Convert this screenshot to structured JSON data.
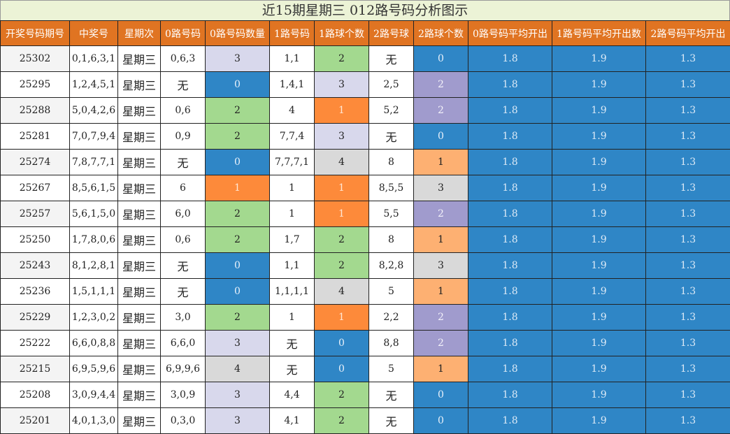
{
  "title": "近15期星期三 012路号码分析图示",
  "columns": [
    "开奖号码期号",
    "中奖号",
    "星期次",
    "0路号码",
    "0路号码数量",
    "1路号码",
    "1路球个数",
    "2路号球",
    "2路球个数",
    "0路号码平均开出",
    "1路号码平均开出数",
    "2路号码平均开出"
  ],
  "colors": {
    "header": "#e07422",
    "title_bg": "#ecf3d6",
    "blue": "#2f86c6",
    "green": "#a3d98f",
    "lavender": "#d8d8ec",
    "orange": "#fd8a3a",
    "peach": "#fdb072",
    "purple": "#a09bcd",
    "gray": "#d9d9d9"
  },
  "chart_data": {
    "type": "table",
    "title": "近15期星期三 012路号码分析图示",
    "rows": [
      {
        "period": "25302",
        "numbers": "0,1,6,3,1",
        "weekday": "星期三",
        "r0": "0,6,3",
        "r0_count": "3",
        "r1": "1,1",
        "r1_count": "2",
        "r2": "无",
        "r2_count": "0",
        "avg0": "1.8",
        "avg1": "1.9",
        "avg2": "1.3"
      },
      {
        "period": "25295",
        "numbers": "1,2,4,5,1",
        "weekday": "星期三",
        "r0": "无",
        "r0_count": "0",
        "r1": "1,4,1",
        "r1_count": "3",
        "r2": "2,5",
        "r2_count": "2",
        "avg0": "1.8",
        "avg1": "1.9",
        "avg2": "1.3"
      },
      {
        "period": "25288",
        "numbers": "5,0,4,2,6",
        "weekday": "星期三",
        "r0": "0,6",
        "r0_count": "2",
        "r1": "4",
        "r1_count": "1",
        "r2": "5,2",
        "r2_count": "2",
        "avg0": "1.8",
        "avg1": "1.9",
        "avg2": "1.3"
      },
      {
        "period": "25281",
        "numbers": "7,0,7,9,4",
        "weekday": "星期三",
        "r0": "0,9",
        "r0_count": "2",
        "r1": "7,7,4",
        "r1_count": "3",
        "r2": "无",
        "r2_count": "0",
        "avg0": "1.8",
        "avg1": "1.9",
        "avg2": "1.3"
      },
      {
        "period": "25274",
        "numbers": "7,8,7,7,1",
        "weekday": "星期三",
        "r0": "无",
        "r0_count": "0",
        "r1": "7,7,7,1",
        "r1_count": "4",
        "r2": "8",
        "r2_count": "1",
        "avg0": "1.8",
        "avg1": "1.9",
        "avg2": "1.3"
      },
      {
        "period": "25267",
        "numbers": "8,5,6,1,5",
        "weekday": "星期三",
        "r0": "6",
        "r0_count": "1",
        "r1": "1",
        "r1_count": "1",
        "r2": "8,5,5",
        "r2_count": "3",
        "avg0": "1.8",
        "avg1": "1.9",
        "avg2": "1.3"
      },
      {
        "period": "25257",
        "numbers": "5,6,1,5,0",
        "weekday": "星期三",
        "r0": "6,0",
        "r0_count": "2",
        "r1": "1",
        "r1_count": "1",
        "r2": "5,5",
        "r2_count": "2",
        "avg0": "1.8",
        "avg1": "1.9",
        "avg2": "1.3"
      },
      {
        "period": "25250",
        "numbers": "1,7,8,0,6",
        "weekday": "星期三",
        "r0": "0,6",
        "r0_count": "2",
        "r1": "1,7",
        "r1_count": "2",
        "r2": "8",
        "r2_count": "1",
        "avg0": "1.8",
        "avg1": "1.9",
        "avg2": "1.3"
      },
      {
        "period": "25243",
        "numbers": "8,1,2,8,1",
        "weekday": "星期三",
        "r0": "无",
        "r0_count": "0",
        "r1": "1,1",
        "r1_count": "2",
        "r2": "8,2,8",
        "r2_count": "3",
        "avg0": "1.8",
        "avg1": "1.9",
        "avg2": "1.3"
      },
      {
        "period": "25236",
        "numbers": "1,5,1,1,1",
        "weekday": "星期三",
        "r0": "无",
        "r0_count": "0",
        "r1": "1,1,1,1",
        "r1_count": "4",
        "r2": "5",
        "r2_count": "1",
        "avg0": "1.8",
        "avg1": "1.9",
        "avg2": "1.3"
      },
      {
        "period": "25229",
        "numbers": "1,2,3,0,2",
        "weekday": "星期三",
        "r0": "3,0",
        "r0_count": "2",
        "r1": "1",
        "r1_count": "1",
        "r2": "2,2",
        "r2_count": "2",
        "avg0": "1.8",
        "avg1": "1.9",
        "avg2": "1.3"
      },
      {
        "period": "25222",
        "numbers": "6,6,0,8,8",
        "weekday": "星期三",
        "r0": "6,6,0",
        "r0_count": "3",
        "r1": "无",
        "r1_count": "0",
        "r2": "8,8",
        "r2_count": "2",
        "avg0": "1.8",
        "avg1": "1.9",
        "avg2": "1.3"
      },
      {
        "period": "25215",
        "numbers": "6,9,5,9,6",
        "weekday": "星期三",
        "r0": "6,9,9,6",
        "r0_count": "4",
        "r1": "无",
        "r1_count": "0",
        "r2": "5",
        "r2_count": "1",
        "avg0": "1.8",
        "avg1": "1.9",
        "avg2": "1.3"
      },
      {
        "period": "25208",
        "numbers": "3,0,9,4,4",
        "weekday": "星期三",
        "r0": "3,0,9",
        "r0_count": "3",
        "r1": "4,4",
        "r1_count": "2",
        "r2": "无",
        "r2_count": "0",
        "avg0": "1.8",
        "avg1": "1.9",
        "avg2": "1.3"
      },
      {
        "period": "25201",
        "numbers": "4,0,1,3,0",
        "weekday": "星期三",
        "r0": "0,3,0",
        "r0_count": "3",
        "r1": "4,1",
        "r1_count": "2",
        "r2": "无",
        "r2_count": "0",
        "avg0": "1.8",
        "avg1": "1.9",
        "avg2": "1.3"
      }
    ]
  }
}
